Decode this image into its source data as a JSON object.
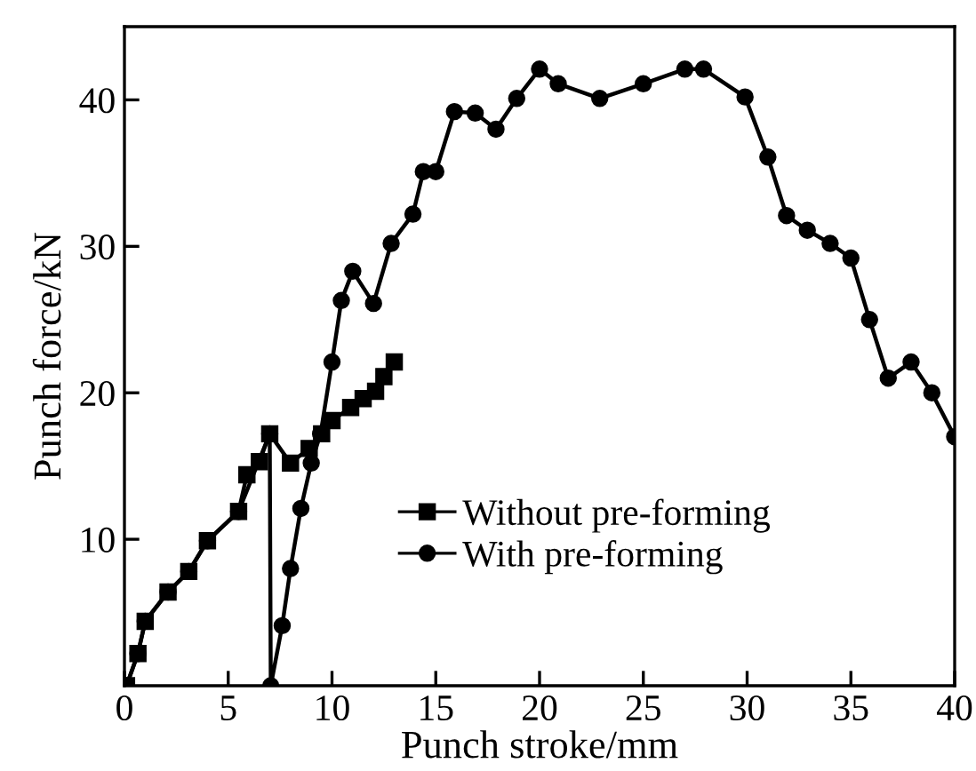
{
  "chart_data": {
    "type": "line",
    "xlabel": "Punch stroke/mm",
    "ylabel": "Punch force/kN",
    "xlim": [
      0,
      40
    ],
    "ylim": [
      0,
      45
    ],
    "xticks": [
      0,
      5,
      10,
      15,
      20,
      25,
      30,
      35,
      40
    ],
    "yticks": [
      10,
      20,
      30,
      40
    ],
    "grid": false,
    "legend": "bottom",
    "line_style": "solid",
    "series": [
      {
        "name": "Without pre-forming",
        "color": "#000000",
        "marker": "square",
        "x": [
          0.1,
          0.65,
          1.0,
          2.1,
          3.1,
          4.0,
          5.5,
          5.9,
          6.5,
          7.0,
          8.0,
          8.9,
          9.5,
          10.0,
          10.9,
          11.5,
          12.1,
          12.5,
          13.0
        ],
        "values": [
          0,
          2.2,
          4.4,
          6.4,
          7.8,
          9.9,
          11.9,
          14.4,
          15.3,
          17.2,
          15.2,
          16.2,
          17.2,
          18.1,
          19.0,
          19.6,
          20.1,
          21.1,
          22.1
        ]
      },
      {
        "name": "With pre-forming",
        "color": "#000000",
        "marker": "circle",
        "x": [
          0.1,
          0.65,
          1.0,
          2.1,
          3.1,
          4.0,
          5.5,
          7.0,
          7.05,
          7.6,
          8.0,
          8.5,
          9.0,
          9.45,
          10.0,
          10.45,
          11.0,
          12.0,
          12.85,
          13.9,
          14.4,
          15.0,
          15.9,
          16.9,
          17.9,
          18.9,
          20.0,
          20.9,
          22.9,
          25.0,
          27.0,
          27.9,
          29.9,
          31.0,
          31.9,
          32.9,
          34.0,
          35.0,
          35.9,
          36.8,
          37.9,
          38.9,
          40.0
        ],
        "values": [
          0,
          2.2,
          4.4,
          6.4,
          7.8,
          9.9,
          11.9,
          17.2,
          0,
          4.1,
          8.0,
          12.1,
          15.2,
          17.2,
          22.1,
          26.3,
          28.3,
          26.1,
          30.2,
          32.2,
          35.1,
          35.1,
          39.2,
          39.1,
          38.0,
          40.1,
          42.1,
          41.1,
          40.1,
          41.1,
          42.1,
          42.1,
          40.2,
          36.1,
          32.1,
          31.1,
          30.2,
          29.2,
          25.0,
          21.0,
          22.1,
          20.0,
          17.0
        ]
      }
    ]
  }
}
